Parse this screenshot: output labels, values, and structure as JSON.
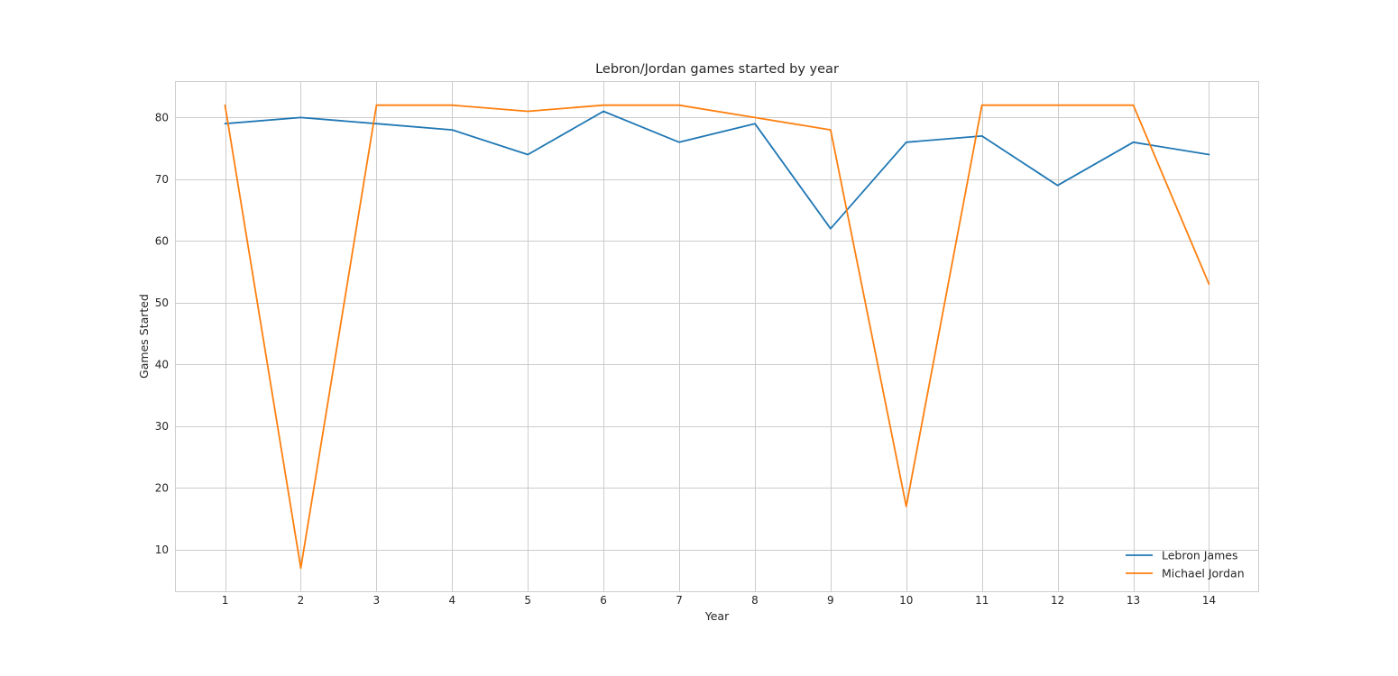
{
  "chart_data": {
    "type": "line",
    "title": "Lebron/Jordan games started by year",
    "xlabel": "Year",
    "ylabel": "Games Started",
    "x": [
      1,
      2,
      3,
      4,
      5,
      6,
      7,
      8,
      9,
      10,
      11,
      12,
      13,
      14
    ],
    "xlim": [
      0.35,
      14.65
    ],
    "ylim": [
      3.25,
      85.75
    ],
    "yticks": [
      10,
      20,
      30,
      40,
      50,
      60,
      70,
      80
    ],
    "grid": true,
    "legend_position": "lower-right",
    "series": [
      {
        "name": "Lebron James",
        "color": "#1f77b4",
        "values": [
          79,
          80,
          79,
          78,
          74,
          81,
          76,
          79,
          62,
          76,
          77,
          69,
          76,
          74
        ]
      },
      {
        "name": "Michael Jordan",
        "color": "#ff7f0e",
        "values": [
          82,
          7,
          82,
          82,
          81,
          82,
          82,
          80,
          78,
          17,
          82,
          82,
          82,
          53
        ]
      }
    ]
  }
}
